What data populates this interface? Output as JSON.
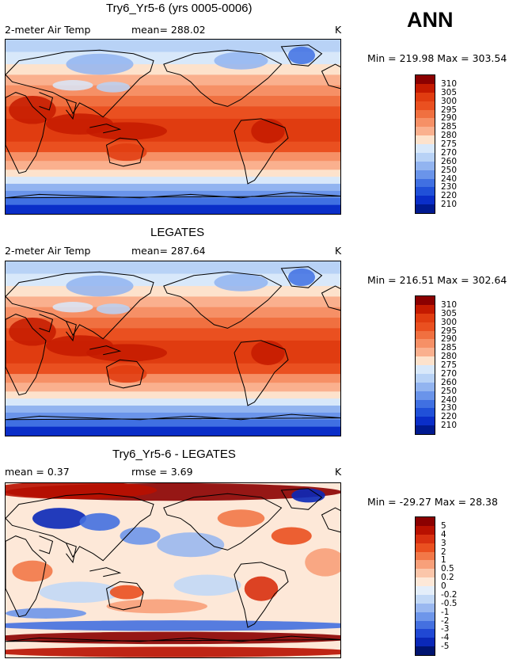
{
  "season": "ANN",
  "coast_color": "#000000",
  "panels": [
    {
      "id": "model",
      "title": "Try6_Yr5-6 (yrs 0005-0006)",
      "left_label": "2-meter Air Temp",
      "center_label": "mean= 288.02",
      "unit": "K",
      "minmax": "Min = 219.98 Max = 303.54",
      "levels": [
        "310",
        "305",
        "300",
        "295",
        "290",
        "285",
        "280",
        "275",
        "270",
        "260",
        "250",
        "240",
        "230",
        "220",
        "210"
      ],
      "colors": [
        "#8b0000",
        "#c41a00",
        "#e03c10",
        "#ea5020",
        "#f07040",
        "#f69066",
        "#fab08e",
        "#fde2cc",
        "#d8e8fa",
        "#b8d2f6",
        "#92b4f0",
        "#6a94ea",
        "#4070e2",
        "#2050d8",
        "#0a2ec8",
        "#001a90"
      ]
    },
    {
      "id": "obs",
      "title": "LEGATES",
      "left_label": "2-meter Air Temp",
      "center_label": "mean= 287.64",
      "unit": "K",
      "minmax": "Min = 216.51 Max = 302.64",
      "levels": [
        "310",
        "305",
        "300",
        "295",
        "290",
        "285",
        "280",
        "275",
        "270",
        "260",
        "250",
        "240",
        "230",
        "220",
        "210"
      ],
      "colors": [
        "#8b0000",
        "#c41a00",
        "#e03c10",
        "#ea5020",
        "#f07040",
        "#f69066",
        "#fab08e",
        "#fde2cc",
        "#d8e8fa",
        "#b8d2f6",
        "#92b4f0",
        "#6a94ea",
        "#4070e2",
        "#2050d8",
        "#0a2ec8",
        "#001a90"
      ]
    },
    {
      "id": "diff",
      "title": "Try6_Yr5-6 - LEGATES",
      "left_label": "mean =   0.37",
      "center_label": "rmse =    3.69",
      "unit": "K",
      "minmax": "Min = -29.27 Max =  28.38",
      "levels": [
        "5",
        "4",
        "3",
        "2",
        "1",
        "0.5",
        "0.2",
        "0",
        "-0.2",
        "-0.5",
        "-1",
        "-2",
        "-3",
        "-4",
        "-5"
      ],
      "colors": [
        "#8b0000",
        "#b81000",
        "#d83010",
        "#ea5020",
        "#f27848",
        "#f8a07a",
        "#fbc6aa",
        "#fde8d8",
        "#e4eefa",
        "#c2d8f6",
        "#9ab8f0",
        "#6e96ea",
        "#4470e0",
        "#2048d4",
        "#0a28b8",
        "#001470"
      ]
    }
  ],
  "chart_data": [
    {
      "type": "heatmap",
      "title": "Try6_Yr5-6 (yrs 0005-0006)",
      "variable": "2-meter Air Temp",
      "units": "K",
      "mean": 288.02,
      "min": 219.98,
      "max": 303.54,
      "contour_levels": [
        210,
        220,
        230,
        240,
        250,
        260,
        270,
        275,
        280,
        285,
        290,
        295,
        300,
        305,
        310
      ],
      "x_range_lon": [
        0,
        360
      ],
      "y_range_lat": [
        -90,
        90
      ]
    },
    {
      "type": "heatmap",
      "title": "LEGATES",
      "variable": "2-meter Air Temp",
      "units": "K",
      "mean": 287.64,
      "min": 216.51,
      "max": 302.64,
      "contour_levels": [
        210,
        220,
        230,
        240,
        250,
        260,
        270,
        275,
        280,
        285,
        290,
        295,
        300,
        305,
        310
      ],
      "x_range_lon": [
        0,
        360
      ],
      "y_range_lat": [
        -90,
        90
      ]
    },
    {
      "type": "heatmap",
      "title": "Try6_Yr5-6 - LEGATES",
      "units": "K",
      "mean": 0.37,
      "rmse": 3.69,
      "min": -29.27,
      "max": 28.38,
      "contour_levels": [
        -5,
        -4,
        -3,
        -2,
        -1,
        -0.5,
        -0.2,
        0,
        0.2,
        0.5,
        1,
        2,
        3,
        4,
        5
      ],
      "x_range_lon": [
        0,
        360
      ],
      "y_range_lat": [
        -90,
        90
      ]
    }
  ]
}
